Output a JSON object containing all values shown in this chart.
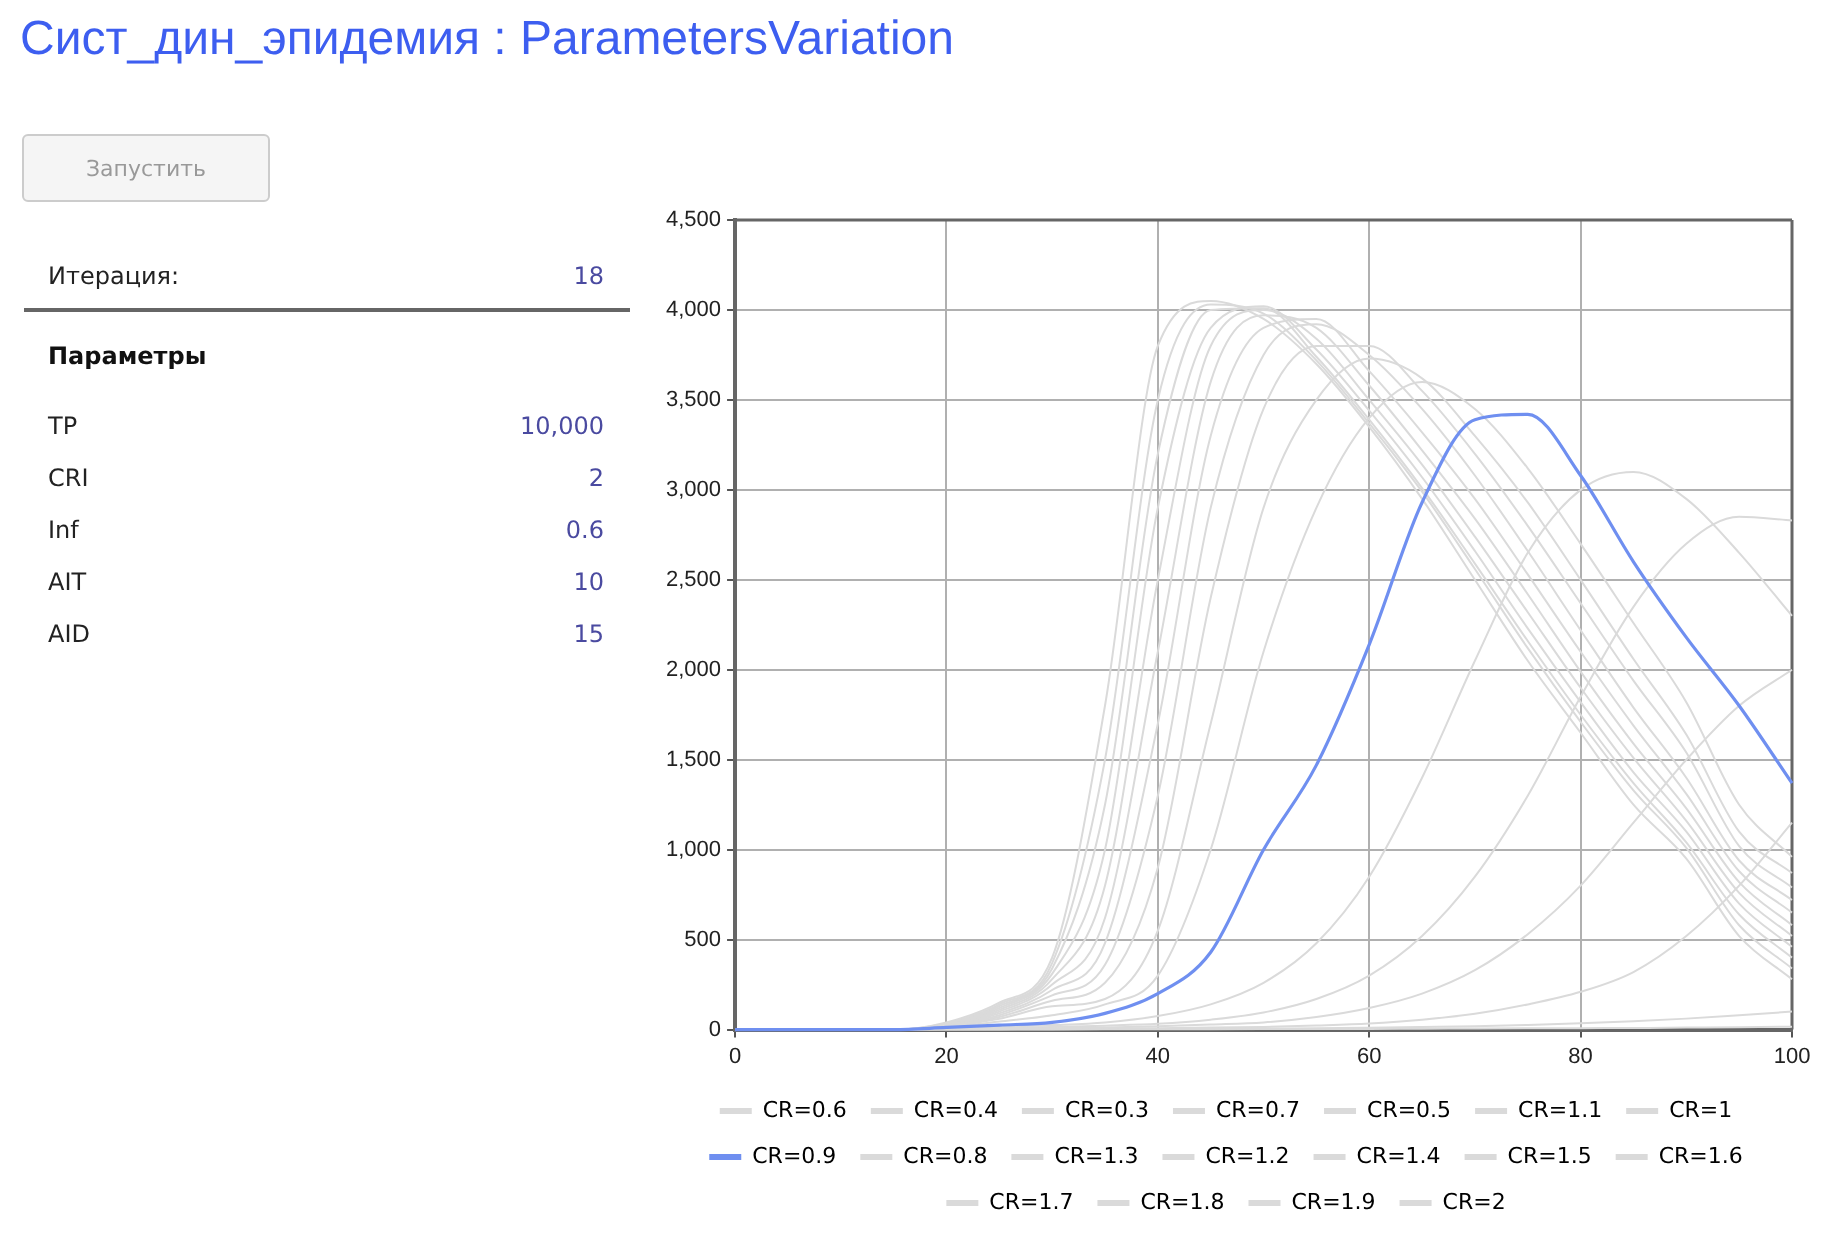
{
  "chart_data": [
    {
      "type": "other",
      "title": "Сист_дин_эпидемия : ParametersVariation",
      "annotations": [
        "Запустить",
        "Итерация:",
        "18",
        "Параметры",
        "TP",
        "10,000",
        "CRI",
        "2",
        "Inf",
        "0.6",
        "AIT",
        "10",
        "AID",
        "15"
      ]
    },
    {
      "type": "line",
      "x": [
        0,
        5,
        10,
        15,
        20,
        25,
        30,
        35,
        40,
        45,
        50,
        55,
        60,
        65,
        70,
        75,
        80,
        85,
        90,
        95,
        100
      ],
      "xlim": [
        0,
        100
      ],
      "xticks": [
        0,
        20,
        40,
        60,
        80,
        100
      ],
      "ylim": [
        0,
        4500
      ],
      "yticks": [
        {
          "value": 0,
          "label": "0"
        },
        {
          "value": 500,
          "label": "500"
        },
        {
          "value": 1000,
          "label": "1,000"
        },
        {
          "value": 1500,
          "label": "1,500"
        },
        {
          "value": 2000,
          "label": "2,000"
        },
        {
          "value": 2500,
          "label": "2,500"
        },
        {
          "value": 3000,
          "label": "3,000"
        },
        {
          "value": 3500,
          "label": "3,500"
        },
        {
          "value": 4000,
          "label": "4,000"
        },
        {
          "value": 4500,
          "label": "4,500"
        }
      ],
      "grid": true,
      "legend": "bottom",
      "marker": "none",
      "line_style": "solid",
      "series": [
        {
          "name": "CR=0.6",
          "color": "#dadada",
          "values": [
            0,
            0,
            0,
            0,
            4,
            6,
            8,
            12,
            18,
            28,
            40,
            70,
            120,
            200,
            330,
            530,
            800,
            1150,
            1500,
            1800,
            2000
          ]
        },
        {
          "name": "CR=0.4",
          "color": "#dadada",
          "values": [
            0,
            0,
            0,
            0,
            1,
            1,
            2,
            3,
            4,
            5,
            6,
            8,
            10,
            14,
            19,
            26,
            35,
            46,
            61,
            80,
            100
          ]
        },
        {
          "name": "CR=0.3",
          "color": "#dadada",
          "values": [
            0,
            0,
            0,
            0,
            0,
            0.5,
            1,
            1.5,
            2,
            2.5,
            3,
            3.5,
            4,
            5,
            6,
            7,
            8,
            9,
            11,
            13,
            16
          ]
        },
        {
          "name": "CR=0.7",
          "color": "#dadada",
          "values": [
            0,
            0,
            0,
            0,
            6,
            10,
            15,
            22,
            32,
            55,
            95,
            170,
            300,
            520,
            850,
            1300,
            1850,
            2350,
            2700,
            2850,
            2830
          ]
        },
        {
          "name": "CR=0.5",
          "color": "#dadada",
          "values": [
            0,
            0,
            0,
            0,
            2,
            3,
            4,
            6,
            8,
            11,
            15,
            23,
            34,
            55,
            88,
            140,
            210,
            320,
            520,
            800,
            1150
          ]
        },
        {
          "name": "CR=1.1",
          "color": "#dadada",
          "values": [
            0,
            0,
            0,
            0,
            16,
            60,
            130,
            170,
            550,
            1700,
            2900,
            3500,
            3730,
            3620,
            3300,
            2930,
            2500,
            2060,
            1640,
            1100,
            870
          ]
        },
        {
          "name": "CR=1",
          "color": "#dadada",
          "values": [
            0,
            0,
            0,
            0,
            14,
            45,
            80,
            140,
            300,
            1000,
            2100,
            2900,
            3400,
            3600,
            3450,
            3120,
            2700,
            2260,
            1820,
            1250,
            960
          ]
        },
        {
          "name": "CR=0.9",
          "color": "#6f8ff0",
          "values": [
            0,
            0,
            0,
            0,
            12,
            25,
            40,
            90,
            200,
            430,
            1000,
            1470,
            2140,
            2930,
            3390,
            3420,
            3080,
            2600,
            2180,
            1800,
            1370
          ]
        },
        {
          "name": "CR=0.8",
          "color": "#dadada",
          "values": [
            0,
            0,
            0,
            0,
            8,
            15,
            25,
            40,
            75,
            140,
            260,
            480,
            850,
            1400,
            2050,
            2650,
            3000,
            3100,
            2950,
            2650,
            2300
          ]
        },
        {
          "name": "CR=1.3",
          "color": "#dadada",
          "values": [
            0,
            0,
            0,
            0,
            20,
            80,
            190,
            360,
            1300,
            2900,
            3750,
            3920,
            3750,
            3450,
            3080,
            2660,
            2220,
            1790,
            1400,
            940,
            720
          ]
        },
        {
          "name": "CR=1.2",
          "color": "#dadada",
          "values": [
            0,
            0,
            0,
            0,
            18,
            70,
            160,
            260,
            900,
            2400,
            3450,
            3800,
            3800,
            3550,
            3200,
            2800,
            2370,
            1940,
            1540,
            1020,
            790
          ]
        },
        {
          "name": "CR=1.4",
          "color": "#dadada",
          "values": [
            0,
            0,
            0,
            0,
            22,
            90,
            220,
            480,
            1700,
            3300,
            3900,
            3950,
            3660,
            3320,
            2950,
            2530,
            2100,
            1690,
            1310,
            880,
            650
          ]
        },
        {
          "name": "CR=1.5",
          "color": "#dadada",
          "values": [
            0,
            0,
            0,
            0,
            24,
            100,
            250,
            620,
            2100,
            3600,
            3970,
            3900,
            3580,
            3220,
            2840,
            2420,
            1990,
            1590,
            1230,
            820,
            580
          ]
        },
        {
          "name": "CR=1.6",
          "color": "#dadada",
          "values": [
            0,
            0,
            0,
            0,
            26,
            110,
            280,
            800,
            2500,
            3800,
            4000,
            3840,
            3500,
            3140,
            2740,
            2320,
            1900,
            1510,
            1160,
            760,
            520
          ]
        },
        {
          "name": "CR=1.7",
          "color": "#dadada",
          "values": [
            0,
            0,
            0,
            0,
            28,
            120,
            310,
            1000,
            2900,
            3900,
            4020,
            3780,
            3440,
            3070,
            2660,
            2230,
            1820,
            1430,
            1100,
            700,
            460
          ]
        },
        {
          "name": "CR=1.8",
          "color": "#dadada",
          "values": [
            0,
            0,
            0,
            0,
            30,
            130,
            340,
            1250,
            3200,
            4000,
            4010,
            3740,
            3390,
            3010,
            2590,
            2160,
            1750,
            1370,
            1040,
            640,
            400
          ]
        },
        {
          "name": "CR=1.9",
          "color": "#dadada",
          "values": [
            0,
            0,
            0,
            0,
            35,
            140,
            370,
            1500,
            3500,
            4030,
            3980,
            3720,
            3370,
            2990,
            2560,
            2120,
            1710,
            1330,
            1010,
            580,
            340
          ]
        },
        {
          "name": "CR=2",
          "color": "#dadada",
          "values": [
            0,
            0,
            0,
            0,
            40,
            150,
            400,
            1800,
            3800,
            4050,
            3950,
            3700,
            3350,
            2950,
            2500,
            2050,
            1650,
            1250,
            950,
            520,
            280
          ]
        }
      ]
    }
  ]
}
